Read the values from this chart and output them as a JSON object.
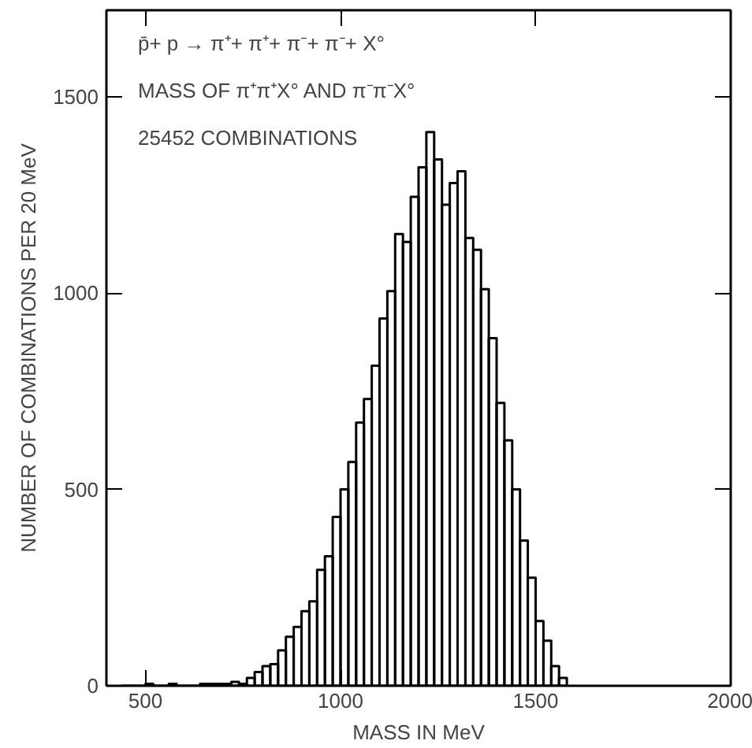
{
  "chart_data": {
    "type": "histogram",
    "annotations": [
      "p̄+ p → π⁺+ π⁺+ π⁻+ π⁻+ X°",
      "MASS OF π⁺π⁺X° AND  π⁻π⁻X°",
      "25452 COMBINATIONS"
    ],
    "xlabel": "MASS IN MeV",
    "ylabel": "NUMBER OF COMBINATIONS PER 20 MeV",
    "bins": [
      440,
      460,
      480,
      500,
      520,
      540,
      560,
      580,
      600,
      620,
      640,
      660,
      680,
      700,
      720,
      740,
      760,
      780,
      800,
      820,
      840,
      860,
      880,
      900,
      920,
      940,
      960,
      980,
      1000,
      1020,
      1040,
      1060,
      1080,
      1100,
      1120,
      1140,
      1160,
      1180,
      1200,
      1220,
      1240,
      1260,
      1280,
      1300,
      1320,
      1340,
      1360,
      1380,
      1400,
      1420,
      1440,
      1460,
      1480,
      1500,
      1520,
      1540,
      1560,
      1580
    ],
    "values": [
      0,
      0,
      0,
      5,
      0,
      0,
      5,
      0,
      0,
      0,
      5,
      5,
      5,
      5,
      10,
      5,
      20,
      35,
      50,
      55,
      90,
      125,
      150,
      190,
      215,
      295,
      330,
      430,
      500,
      570,
      670,
      730,
      815,
      935,
      1005,
      1150,
      1130,
      1245,
      1320,
      1410,
      1340,
      1225,
      1280,
      1310,
      1140,
      1110,
      1010,
      885,
      720,
      625,
      500,
      370,
      275,
      165,
      115,
      50,
      20
    ],
    "color": "#000000",
    "xlim": [
      400,
      2000
    ],
    "ylim": [
      0,
      1720
    ],
    "xticks": [
      500,
      1000,
      1500,
      2000
    ],
    "yticks": [
      0,
      500,
      1000,
      1500
    ],
    "grid": false
  }
}
